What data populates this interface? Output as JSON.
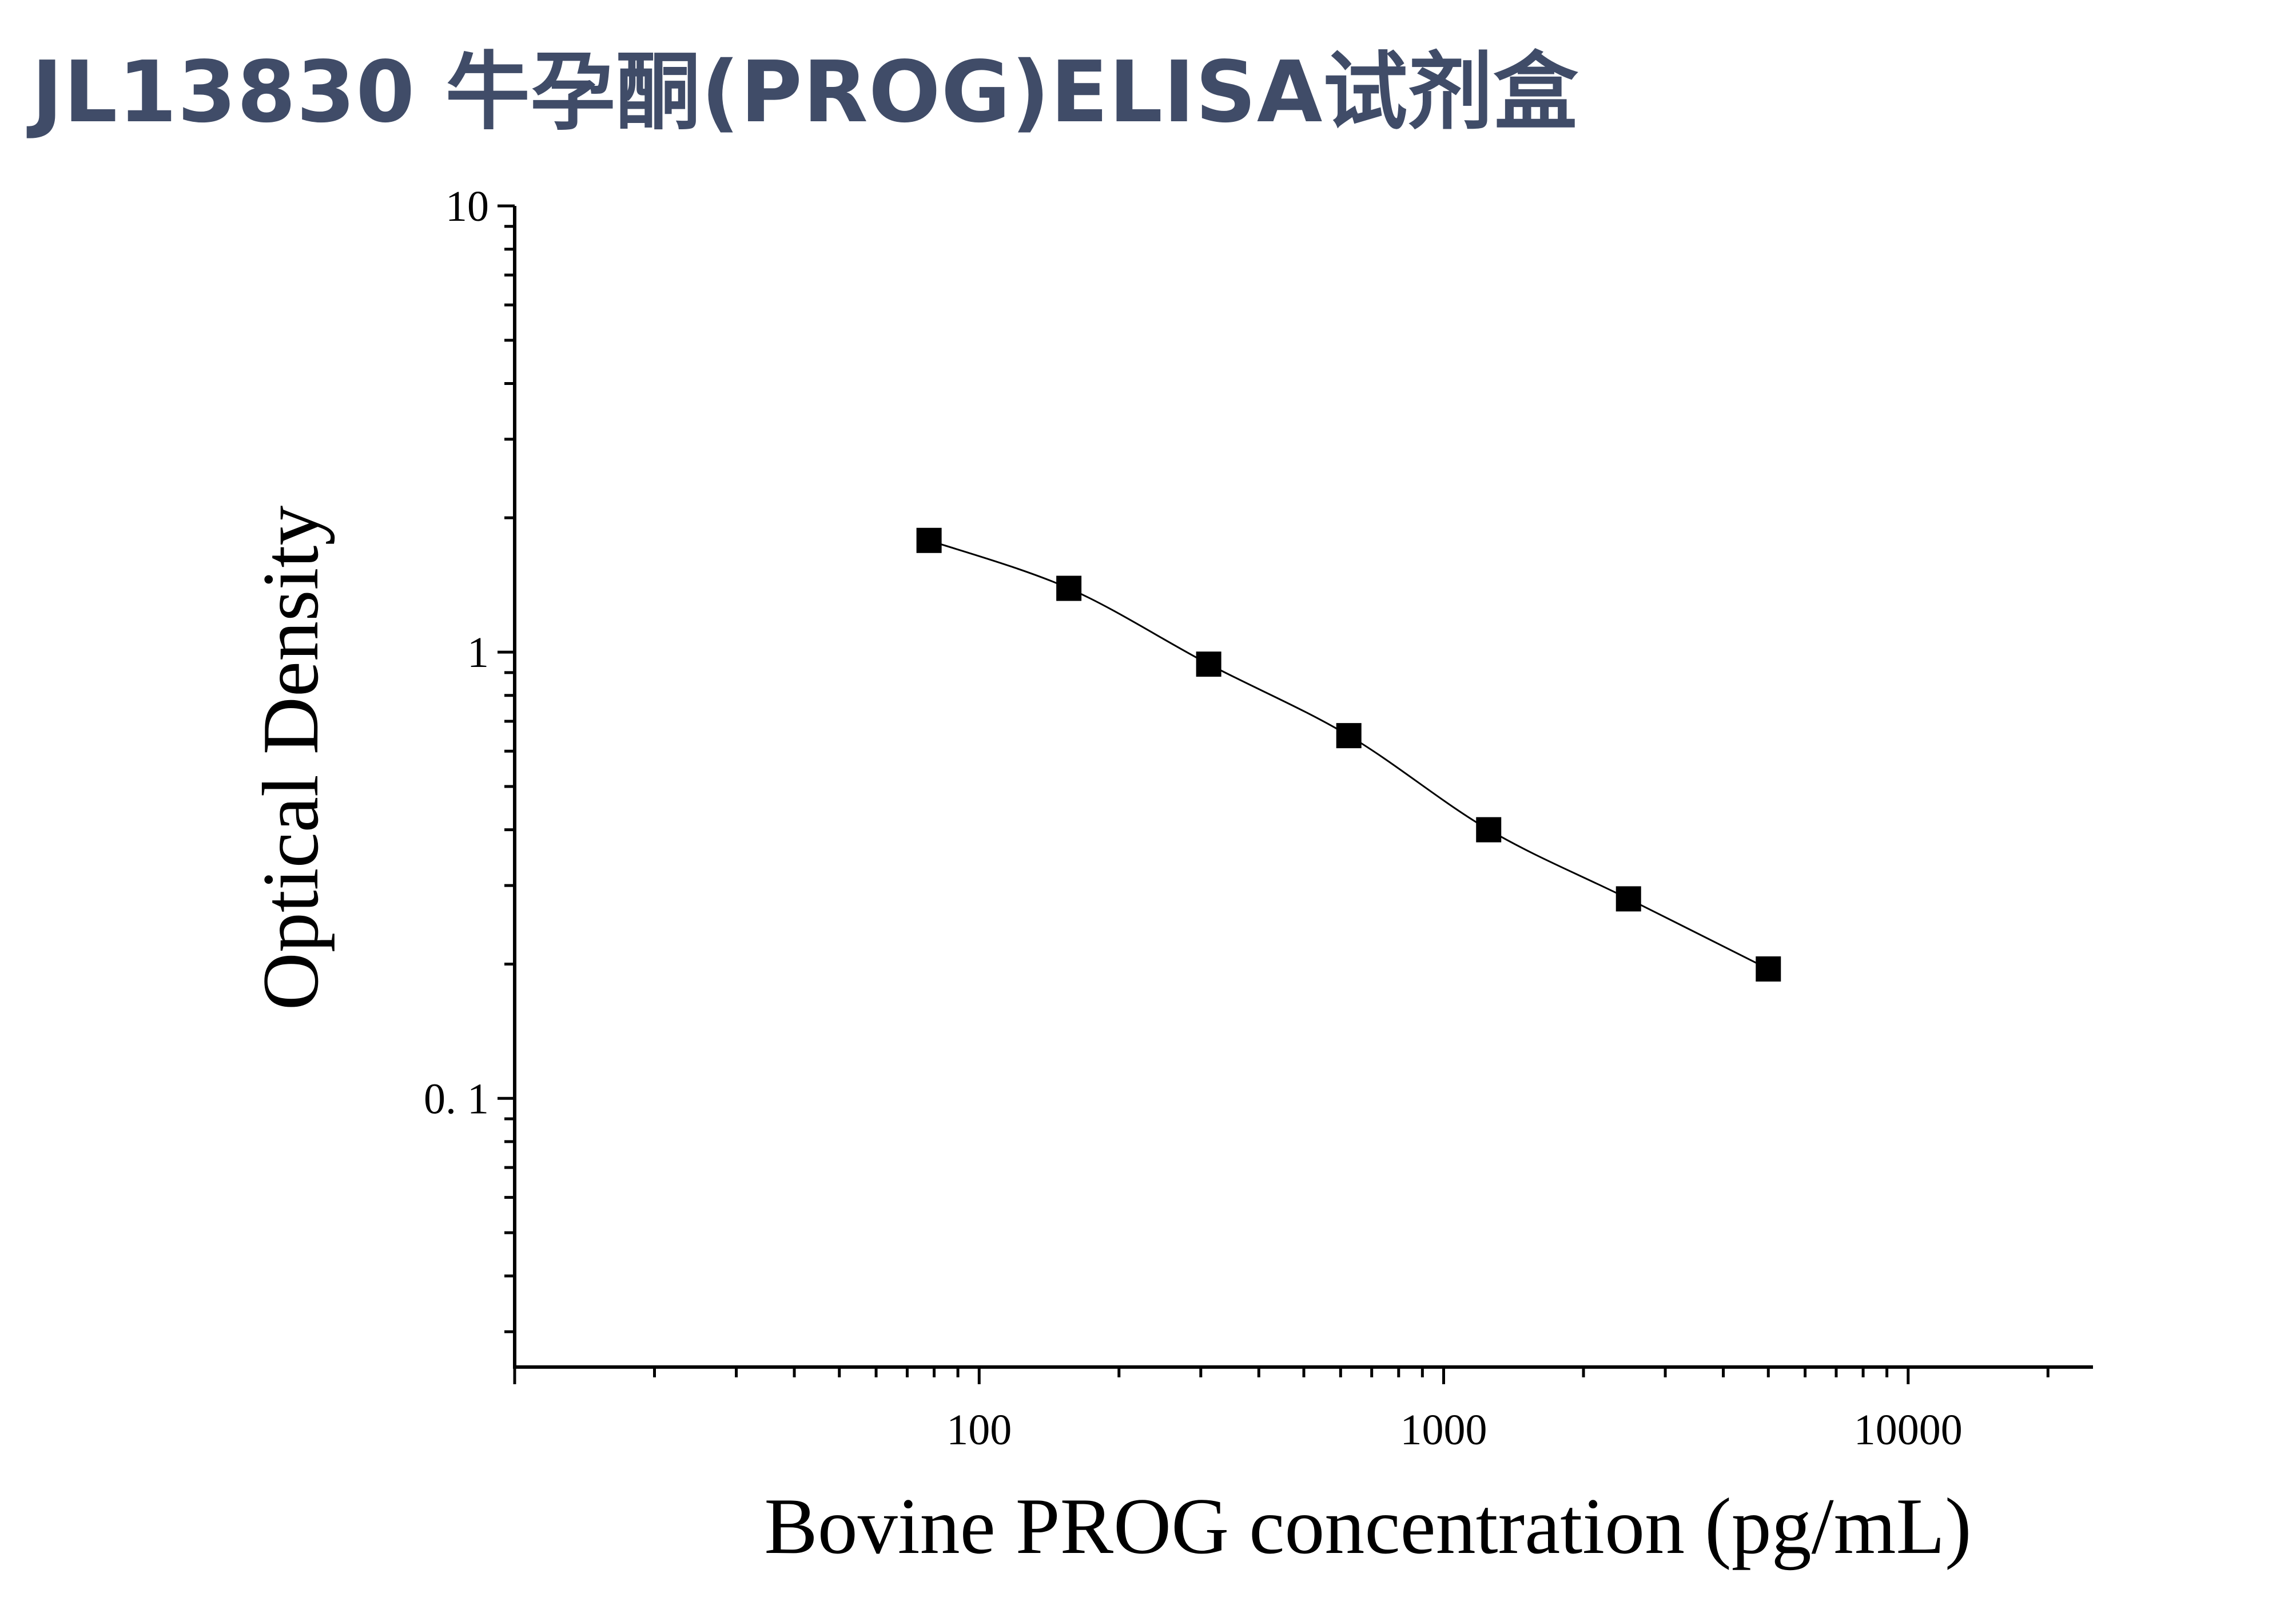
{
  "title": "JL13830 牛孕酮(PROG)ELISA试剂盒",
  "chart_data": {
    "type": "scatter",
    "xlabel": "Bovine PROG concentration (pg/mL)",
    "ylabel": "Optical Density",
    "x_scale": "log",
    "y_scale": "log",
    "xlim": [
      10,
      25000
    ],
    "ylim": [
      0.025,
      10
    ],
    "x_ticks": [
      100,
      1000,
      10000
    ],
    "x_tick_labels": [
      "100",
      "1000",
      "10000"
    ],
    "y_ticks": [
      10,
      1,
      0.1
    ],
    "y_tick_labels": [
      "10",
      "1",
      "0. 1"
    ],
    "grid": false,
    "series": [
      {
        "x": [
          78,
          156,
          312,
          625,
          1250,
          2500,
          5000
        ],
        "y": [
          1.78,
          1.39,
          0.94,
          0.65,
          0.4,
          0.28,
          0.195
        ],
        "marker": "square",
        "fit_curve": true,
        "color": "#000000"
      }
    ]
  }
}
